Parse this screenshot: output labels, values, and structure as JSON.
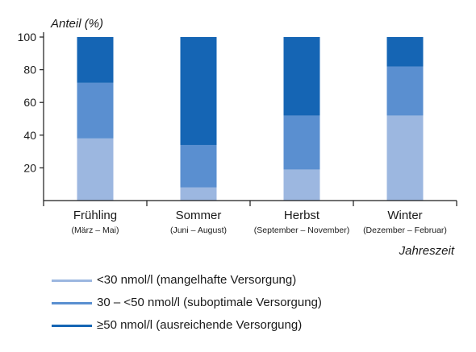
{
  "chart_data": {
    "type": "bar",
    "stacked": true,
    "ylabel": "Anteil (%)",
    "xlabel": "Jahreszeit",
    "ylim": [
      0,
      100
    ],
    "yticks": [
      20,
      40,
      60,
      80,
      100
    ],
    "grid": false,
    "legend_position": "bottom",
    "categories": [
      "Frühling",
      "Sommer",
      "Herbst",
      "Winter"
    ],
    "category_sublabels": [
      "(März – Mai)",
      "(Juni – August)",
      "(September – November)",
      "(Dezember – Februar)"
    ],
    "series": [
      {
        "name": "<30 nmol/l (mangelhafte Versorgung)",
        "values": [
          38,
          8,
          19,
          52
        ],
        "color": "#9cb7e0"
      },
      {
        "name": "30 – <50 nmol/l (suboptimale Versorgung)",
        "values": [
          34,
          26,
          33,
          30
        ],
        "color": "#5a8fd0"
      },
      {
        "name": "≥50 nmol/l (ausreichende Versorgung)",
        "values": [
          28,
          66,
          48,
          18
        ],
        "color": "#1565b4"
      }
    ]
  }
}
